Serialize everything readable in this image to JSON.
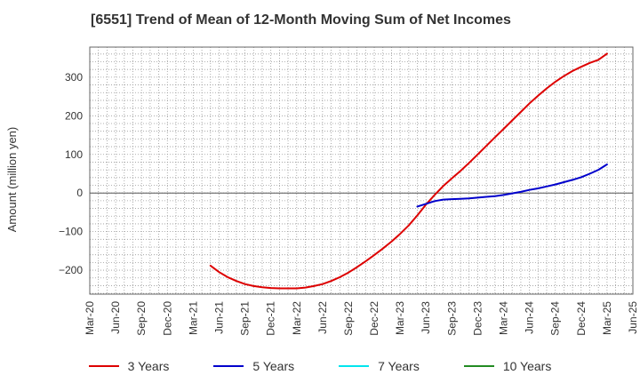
{
  "chart_data": {
    "type": "line",
    "title": "[6551]  Trend of Mean of 12-Month Moving Sum of Net Incomes",
    "xlabel": "",
    "ylabel": "Amount (million yen)",
    "ylim": [
      -262,
      378
    ],
    "yticks": [
      -200,
      -100,
      0,
      100,
      200,
      300
    ],
    "x_start": "2020-03",
    "x_end": "2025-06",
    "x_ticks": [
      "Mar-20",
      "Jun-20",
      "Sep-20",
      "Dec-20",
      "Mar-21",
      "Jun-21",
      "Sep-21",
      "Dec-21",
      "Mar-22",
      "Jun-22",
      "Sep-22",
      "Dec-22",
      "Mar-23",
      "Jun-23",
      "Sep-23",
      "Dec-23",
      "Mar-24",
      "Jun-24",
      "Sep-24",
      "Dec-24",
      "Mar-25",
      "Jun-25"
    ],
    "grid": true,
    "legend_position": "bottom",
    "series": [
      {
        "name": "3 Years",
        "color": "#dd0000",
        "x": [
          "2021-05",
          "2021-06",
          "2021-07",
          "2021-08",
          "2021-09",
          "2021-10",
          "2021-11",
          "2021-12",
          "2022-01",
          "2022-02",
          "2022-03",
          "2022-04",
          "2022-05",
          "2022-06",
          "2022-07",
          "2022-08",
          "2022-09",
          "2022-10",
          "2022-11",
          "2022-12",
          "2023-01",
          "2023-02",
          "2023-03",
          "2023-04",
          "2023-05",
          "2023-06",
          "2023-07",
          "2023-08",
          "2023-09",
          "2023-10",
          "2023-11",
          "2023-12",
          "2024-01",
          "2024-02",
          "2024-03",
          "2024-04",
          "2024-05",
          "2024-06",
          "2024-07",
          "2024-08",
          "2024-09",
          "2024-10",
          "2024-11",
          "2024-12",
          "2025-01",
          "2025-02",
          "2025-03"
        ],
        "values": [
          -188,
          -205,
          -218,
          -228,
          -236,
          -241,
          -244,
          -246,
          -247,
          -247,
          -247,
          -245,
          -241,
          -236,
          -228,
          -218,
          -206,
          -192,
          -177,
          -161,
          -144,
          -126,
          -106,
          -84,
          -58,
          -30,
          -5,
          18,
          38,
          57,
          78,
          100,
          122,
          144,
          166,
          188,
          210,
          232,
          252,
          271,
          288,
          303,
          316,
          327,
          337,
          345,
          361
        ]
      },
      {
        "name": "5 Years",
        "color": "#0000cc",
        "x": [
          "2023-05",
          "2023-06",
          "2023-07",
          "2023-08",
          "2023-09",
          "2023-10",
          "2023-11",
          "2023-12",
          "2024-01",
          "2024-02",
          "2024-03",
          "2024-04",
          "2024-05",
          "2024-06",
          "2024-07",
          "2024-08",
          "2024-09",
          "2024-10",
          "2024-11",
          "2024-12",
          "2025-01",
          "2025-02",
          "2025-03"
        ],
        "values": [
          -35,
          -28,
          -21,
          -17,
          -16,
          -15,
          -14,
          -12,
          -10,
          -8,
          -5,
          -1,
          3,
          8,
          12,
          17,
          22,
          28,
          34,
          41,
          50,
          60,
          74
        ]
      },
      {
        "name": "7 Years",
        "color": "#00e5ee",
        "x": [],
        "values": []
      },
      {
        "name": "10 Years",
        "color": "#228b22",
        "x": [],
        "values": []
      }
    ]
  }
}
